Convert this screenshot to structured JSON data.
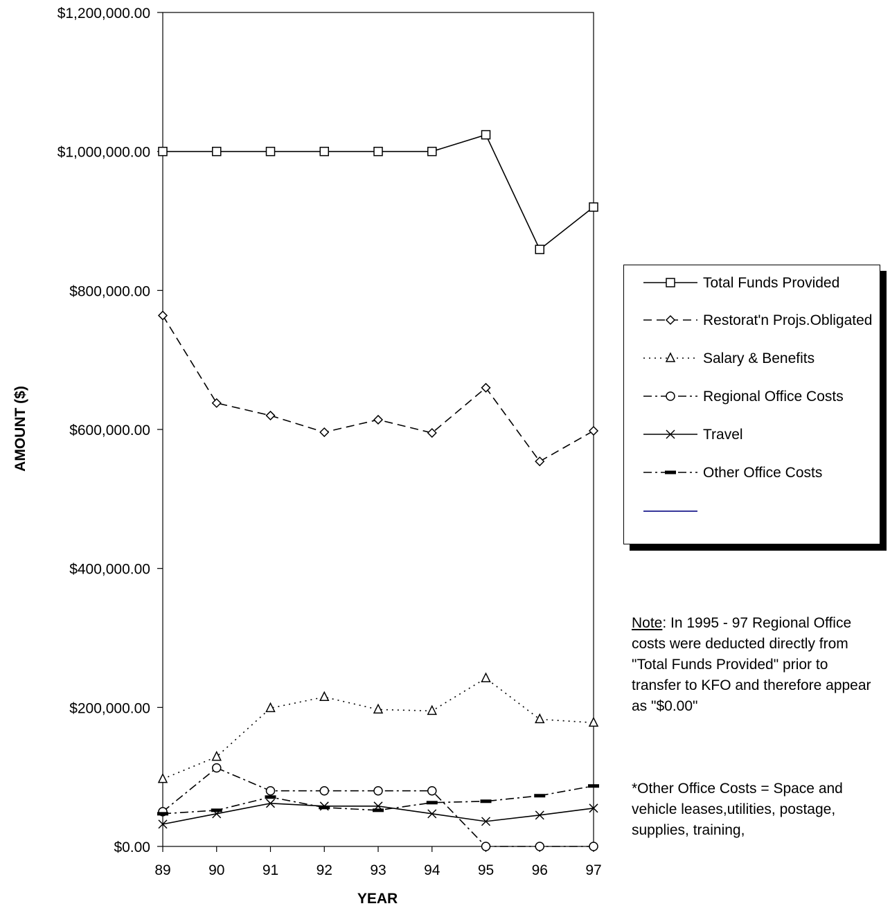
{
  "chart_data": {
    "type": "line",
    "xlabel": "YEAR",
    "ylabel": "AMOUNT ($)",
    "categories": [
      "89",
      "90",
      "91",
      "92",
      "93",
      "94",
      "95",
      "96",
      "97"
    ],
    "ylim": [
      0,
      1200000
    ],
    "yticks": [
      "$0.00",
      "$200,000.00",
      "$400,000.00",
      "$600,000.00",
      "$800,000.00",
      "$1,000,000.00",
      "$1,200,000.00"
    ],
    "grid": false,
    "legend_position": "right",
    "series": [
      {
        "name": "Total Funds Provided",
        "marker": "square",
        "dash": "solid",
        "color": "#000000",
        "values": [
          1000000,
          1000000,
          1000000,
          1000000,
          1000000,
          1000000,
          1024000,
          859000,
          920000
        ]
      },
      {
        "name": "Restorat'n Projs.Obligated",
        "marker": "diamond",
        "dash": "dashed",
        "color": "#000000",
        "values": [
          764000,
          638000,
          620000,
          596000,
          614000,
          595000,
          660000,
          554000,
          598000
        ]
      },
      {
        "name": "Salary & Benefits",
        "marker": "triangle",
        "dash": "dotted",
        "color": "#000000",
        "values": [
          97000,
          129000,
          199000,
          215000,
          197000,
          195000,
          242000,
          183000,
          178000
        ]
      },
      {
        "name": "Regional Office Costs",
        "marker": "circle",
        "dash": "dashdot",
        "color": "#000000",
        "values": [
          50000,
          113000,
          80000,
          80000,
          80000,
          80000,
          0,
          0,
          0
        ]
      },
      {
        "name": "Travel",
        "marker": "x",
        "dash": "solid",
        "color": "#000000",
        "values": [
          32000,
          47000,
          62000,
          58000,
          58000,
          47000,
          36000,
          45000,
          55000
        ]
      },
      {
        "name": "Other Office Costs",
        "marker": "dash",
        "dash": "dashdot",
        "color": "#000000",
        "values": [
          47000,
          52000,
          71000,
          56000,
          52000,
          63000,
          65000,
          73000,
          87000
        ]
      }
    ],
    "legend_extra_line_color": "#1a1a8c"
  },
  "note": {
    "label": "Note",
    "text": ": In 1995 - 97  Regional Office costs were deducted directly from \"Total Funds Provided\" prior to transfer to KFO and therefore appear as \"$0.00\""
  },
  "footnote": "*Other Office Costs = Space and vehicle leases,utilities, postage, supplies, training,"
}
